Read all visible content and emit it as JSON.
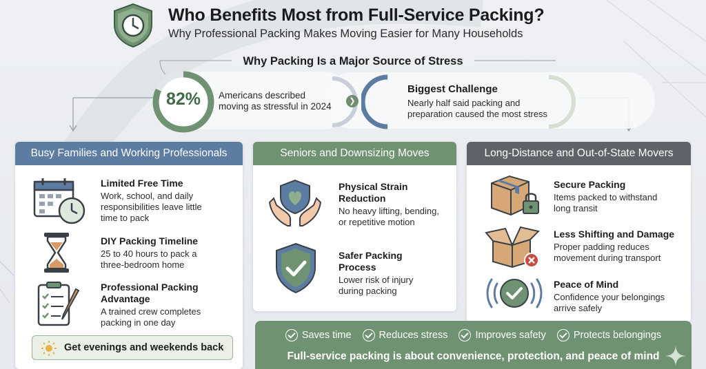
{
  "header": {
    "title": "Who Benefits Most from Full-Service Packing?",
    "subtitle": "Why Professional Packing Makes Moving Easier for Many Households",
    "badge_icon": "shield-clock-icon"
  },
  "stress": {
    "title": "Why Packing Is a Major Source of Stress",
    "stat_percent": "82%",
    "stat_value": 0.82,
    "stat_text_line1": "Americans described",
    "stat_text_line2": "moving as stressful in 2024",
    "challenge_title": "Biggest Challenge",
    "challenge_line1": "Nearly half said packing and",
    "challenge_line2": "preparation caused the most stress"
  },
  "panels": {
    "families": {
      "heading": "Busy Families and Working Professionals",
      "items": [
        {
          "title": "Limited Free Time",
          "lines": [
            "Work, school, and daily",
            "responsibilities leave little",
            "time to pack"
          ],
          "icon": "calendar-clock-icon"
        },
        {
          "title": "DIY Packing Timeline",
          "lines": [
            "25 to 40 hours to pack a",
            "three-bedroom home"
          ],
          "icon": "hourglass-icon"
        },
        {
          "title_lines": [
            "Professional Packing",
            "Advantage"
          ],
          "lines": [
            "A trained crew completes",
            "packing in one day"
          ],
          "icon": "clipboard-checklist-icon"
        }
      ],
      "cta": "Get evenings and weekends back",
      "cta_icon": "sun-icon"
    },
    "seniors": {
      "heading": "Seniors and Downsizing Moves",
      "items": [
        {
          "title_lines": [
            "Physical Strain",
            "Reduction"
          ],
          "lines": [
            "No heavy lifting, bending,",
            "or repetitive motion"
          ],
          "icon": "hands-heart-shield-icon"
        },
        {
          "title_lines": [
            "Safer Packing",
            "Process"
          ],
          "lines": [
            "Lower risk of injury",
            "during packing"
          ],
          "icon": "shield-check-icon"
        }
      ]
    },
    "long_distance": {
      "heading": "Long-Distance and Out-of-State Movers",
      "items": [
        {
          "title": "Secure Packing",
          "lines": [
            "Items packed to withstand",
            "long transit"
          ],
          "icon": "box-lock-icon"
        },
        {
          "title": "Less Shifting and Damage",
          "lines": [
            "Proper padding reduces",
            "movement during transport"
          ],
          "icon": "open-box-x-icon"
        },
        {
          "title": "Peace of Mind",
          "lines": [
            "Confidence your belongings",
            "arrive safely"
          ],
          "icon": "check-circle-icon"
        }
      ]
    }
  },
  "bottom": {
    "benefits": [
      "Saves time",
      "Reduces stress",
      "Improves safety",
      "Protects belongings"
    ],
    "tagline": "Full-service packing is about convenience, protection, and peace of mind"
  },
  "colors": {
    "green": "#6f9372",
    "blue": "#5d7ca1",
    "gray": "#5e6369",
    "dark_green_text": "#3f6b46"
  }
}
